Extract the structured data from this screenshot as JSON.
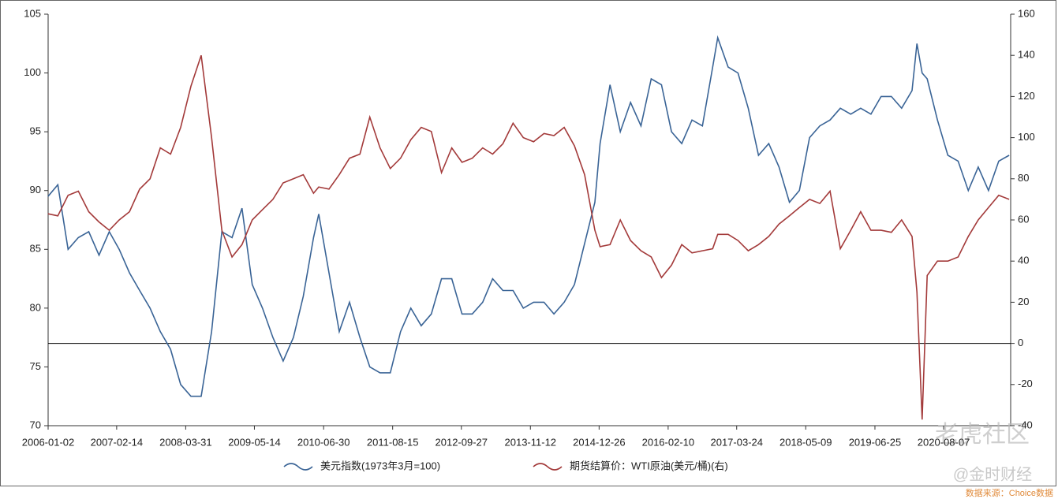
{
  "chart_data": {
    "type": "line",
    "x": [
      "2006-01",
      "2006-03",
      "2006-05",
      "2006-07",
      "2006-09",
      "2006-11",
      "2007-01",
      "2007-03",
      "2007-05",
      "2007-07",
      "2007-09",
      "2007-11",
      "2008-01",
      "2008-03",
      "2008-05",
      "2008-07",
      "2008-09",
      "2008-11",
      "2009-01",
      "2009-03",
      "2009-05",
      "2009-07",
      "2009-09",
      "2009-11",
      "2010-01",
      "2010-03",
      "2010-05",
      "2010-06",
      "2010-08",
      "2010-10",
      "2010-12",
      "2011-02",
      "2011-04",
      "2011-06",
      "2011-08",
      "2011-10",
      "2011-12",
      "2012-02",
      "2012-04",
      "2012-06",
      "2012-08",
      "2012-10",
      "2012-12",
      "2013-02",
      "2013-04",
      "2013-06",
      "2013-08",
      "2013-10",
      "2013-12",
      "2014-02",
      "2014-04",
      "2014-06",
      "2014-08",
      "2014-10",
      "2014-12",
      "2015-01",
      "2015-03",
      "2015-05",
      "2015-07",
      "2015-09",
      "2015-11",
      "2016-01",
      "2016-03",
      "2016-05",
      "2016-07",
      "2016-09",
      "2016-11",
      "2016-12",
      "2017-02",
      "2017-04",
      "2017-06",
      "2017-08",
      "2017-10",
      "2017-12",
      "2018-02",
      "2018-04",
      "2018-06",
      "2018-08",
      "2018-10",
      "2018-12",
      "2019-02",
      "2019-04",
      "2019-06",
      "2019-08",
      "2019-10",
      "2019-12",
      "2020-02",
      "2020-03",
      "2020-04",
      "2020-05",
      "2020-07",
      "2020-09",
      "2020-11",
      "2021-01",
      "2021-03",
      "2021-05",
      "2021-07",
      "2021-09"
    ],
    "series": [
      {
        "name": "美元指数(1973年3月=100)",
        "color": "#3a6496",
        "axis": "y",
        "values": [
          89.5,
          90.5,
          85,
          86,
          86.5,
          84.5,
          86.5,
          85,
          83,
          81.5,
          80,
          78,
          76.5,
          73.5,
          72.5,
          72.5,
          78,
          86.5,
          86,
          88.5,
          82,
          80,
          77.5,
          75.5,
          77.5,
          81,
          86,
          88,
          83,
          78,
          80.5,
          77.5,
          75,
          74.5,
          74.5,
          78,
          80,
          78.5,
          79.5,
          82.5,
          82.5,
          79.5,
          79.5,
          80.5,
          82.5,
          81.5,
          81.5,
          80,
          80.5,
          80.5,
          79.5,
          80.5,
          82,
          85.5,
          89,
          94,
          99,
          95,
          97.5,
          95.5,
          99.5,
          99,
          95,
          94,
          96,
          95.5,
          100.5,
          103,
          100.5,
          100,
          97,
          93,
          94,
          92,
          89,
          90,
          94.5,
          95.5,
          96,
          97,
          96.5,
          97,
          96.5,
          98,
          98,
          97,
          98.5,
          102.5,
          100,
          99.5,
          96,
          93,
          92.5,
          90,
          92,
          90,
          92.5,
          93
        ]
      },
      {
        "name": "期货结算价：WTI原油(美元/桶)(右)",
        "color": "#a33a3a",
        "axis": "y2",
        "values": [
          63,
          62,
          72,
          74,
          64,
          59,
          55,
          60,
          64,
          75,
          80,
          95,
          92,
          105,
          125,
          140,
          100,
          55,
          42,
          48,
          60,
          65,
          70,
          78,
          80,
          82,
          73,
          76,
          75,
          82,
          90,
          92,
          110,
          95,
          85,
          90,
          99,
          105,
          103,
          83,
          95,
          88,
          90,
          95,
          92,
          97,
          107,
          100,
          98,
          102,
          101,
          105,
          96,
          82,
          55,
          47,
          48,
          60,
          50,
          45,
          42,
          32,
          38,
          48,
          44,
          45,
          46,
          53,
          53,
          50,
          45,
          48,
          52,
          58,
          62,
          66,
          70,
          68,
          74,
          46,
          55,
          64,
          55,
          55,
          54,
          60,
          52,
          25,
          -37,
          33,
          40,
          40,
          42,
          52,
          60,
          66,
          72,
          70
        ]
      }
    ],
    "xlim": [
      "2006-01-02",
      "2021-09-10"
    ],
    "xticks": [
      "2006-01-02",
      "2007-02-14",
      "2008-03-31",
      "2009-05-14",
      "2010-06-30",
      "2011-08-15",
      "2012-09-27",
      "2013-11-12",
      "2014-12-26",
      "2016-02-10",
      "2017-03-24",
      "2018-05-09",
      "2019-06-25",
      "2020-08-07"
    ],
    "ylim": [
      70,
      105
    ],
    "yticks": [
      70,
      75,
      80,
      85,
      90,
      95,
      100,
      105
    ],
    "y2lim": [
      -40,
      160
    ],
    "y2ticks": [
      -40,
      -20,
      0,
      20,
      40,
      60,
      80,
      100,
      120,
      140,
      160
    ],
    "y2_reference_line": 0,
    "legend": "bottom",
    "annotations": [
      "老虎社区",
      "@金时财经",
      "数据来源：Choice数据"
    ]
  }
}
